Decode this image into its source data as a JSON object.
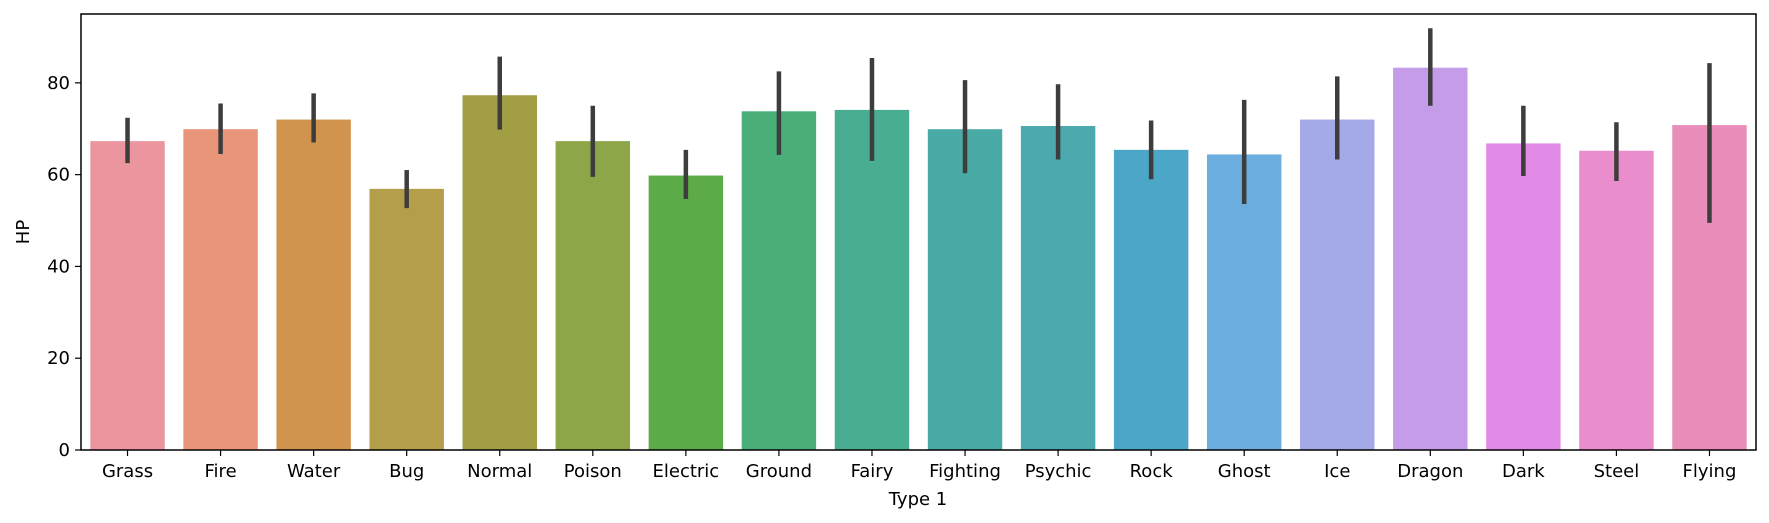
{
  "chart_data": {
    "type": "bar",
    "title": "",
    "xlabel": "Type 1",
    "ylabel": "HP",
    "ylim": [
      0,
      95
    ],
    "yticks": [
      0,
      20,
      40,
      60,
      80
    ],
    "categories": [
      "Grass",
      "Fire",
      "Water",
      "Bug",
      "Normal",
      "Poison",
      "Electric",
      "Ground",
      "Fairy",
      "Fighting",
      "Psychic",
      "Rock",
      "Ghost",
      "Ice",
      "Dragon",
      "Dark",
      "Steel",
      "Flying"
    ],
    "values": [
      67.3,
      69.9,
      72.0,
      56.9,
      77.3,
      67.3,
      59.8,
      73.8,
      74.1,
      69.9,
      70.6,
      65.4,
      64.4,
      72.0,
      83.3,
      66.8,
      65.2,
      70.8
    ],
    "ci_low": [
      62.5,
      64.5,
      67.0,
      52.7,
      69.8,
      59.5,
      54.7,
      64.3,
      63.0,
      60.3,
      63.3,
      59.0,
      53.6,
      63.3,
      75.0,
      59.7,
      58.6,
      49.5
    ],
    "ci_high": [
      72.4,
      75.5,
      77.7,
      61.0,
      85.7,
      75.0,
      65.4,
      82.5,
      85.4,
      80.6,
      79.7,
      71.8,
      76.3,
      81.4,
      91.9,
      75.0,
      71.4,
      84.3
    ],
    "colors": [
      "#eb959f",
      "#e8957a",
      "#d0944e",
      "#b49e4a",
      "#a29e44",
      "#8ca648",
      "#5caa48",
      "#49ae7a",
      "#49ad91",
      "#4aaaa6",
      "#4caaae",
      "#4ba6c8",
      "#6aadde",
      "#a4a9e8",
      "#c49ce7",
      "#e18be6",
      "#e98dcd",
      "#e98dbb"
    ],
    "error_color": "#3d3d3d",
    "grid": false,
    "legend": "none"
  }
}
